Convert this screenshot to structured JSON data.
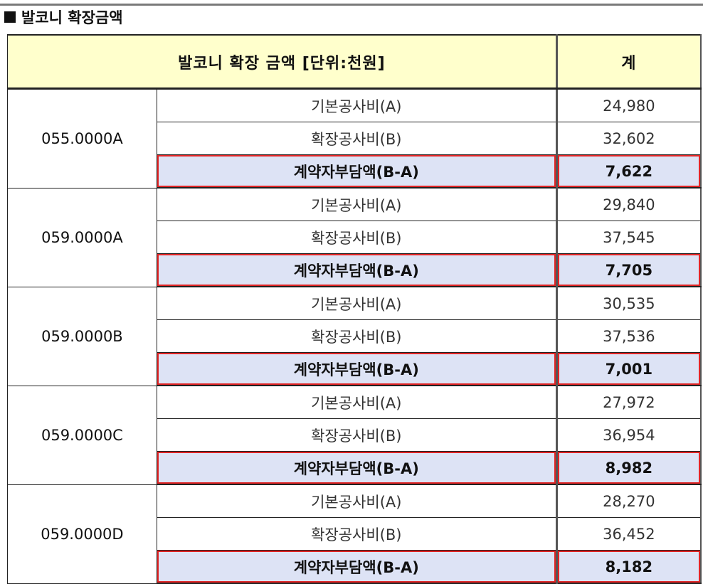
{
  "section_title": "발코니 확장금액",
  "header": {
    "label": "발코니 확장 금액 [단위:천원]",
    "total": "계"
  },
  "units": [
    {
      "type": "055.0000A",
      "rows": [
        {
          "label": "기본공사비(A)",
          "value": "24,980"
        },
        {
          "label": "확장공사비(B)",
          "value": "32,602"
        },
        {
          "label": "계약자부담액(B-A)",
          "value": "7,622"
        }
      ]
    },
    {
      "type": "059.0000A",
      "rows": [
        {
          "label": "기본공사비(A)",
          "value": "29,840"
        },
        {
          "label": "확장공사비(B)",
          "value": "37,545"
        },
        {
          "label": "계약자부담액(B-A)",
          "value": "7,705"
        }
      ]
    },
    {
      "type": "059.0000B",
      "rows": [
        {
          "label": "기본공사비(A)",
          "value": "30,535"
        },
        {
          "label": "확장공사비(B)",
          "value": "37,536"
        },
        {
          "label": "계약자부담액(B-A)",
          "value": "7,001"
        }
      ]
    },
    {
      "type": "059.0000C",
      "rows": [
        {
          "label": "기본공사비(A)",
          "value": "27,972"
        },
        {
          "label": "확장공사비(B)",
          "value": "36,954"
        },
        {
          "label": "계약자부담액(B-A)",
          "value": "8,982"
        }
      ]
    },
    {
      "type": "059.0000D",
      "rows": [
        {
          "label": "기본공사비(A)",
          "value": "28,270"
        },
        {
          "label": "확장공사비(B)",
          "value": "36,452"
        },
        {
          "label": "계약자부담액(B-A)",
          "value": "8,182"
        }
      ]
    }
  ]
}
